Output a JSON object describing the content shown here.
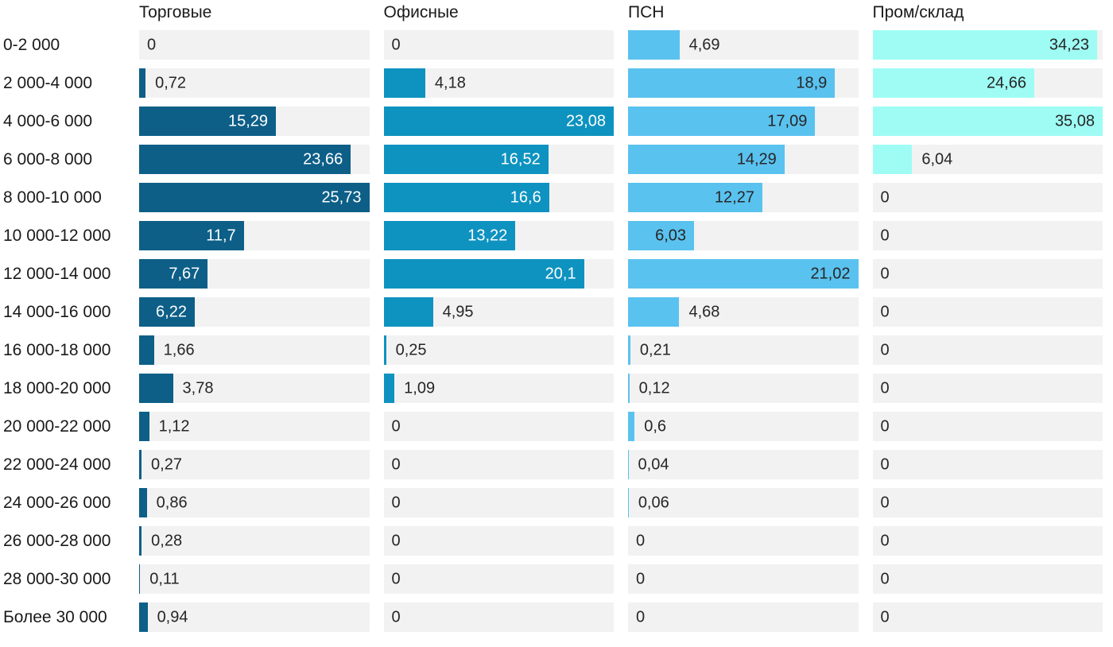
{
  "chart_data": {
    "type": "bar",
    "orientation": "horizontal",
    "layout": "small-multiples-columns",
    "grid": false,
    "axis_ticks": "none (values labeled directly on bars)",
    "value_label_decimal_separator": ",",
    "track_color": "#f2f2f2",
    "text_color": "#1a1a1a",
    "outside_label_color": "#262626",
    "categories": [
      "0-2 000",
      "2 000-4 000",
      "4 000-6 000",
      "6 000-8 000",
      "8 000-10 000",
      "10 000-12 000",
      "12 000-14 000",
      "14 000-16 000",
      "16 000-18 000",
      "18 000-20 000",
      "20 000-22 000",
      "22 000-24 000",
      "24 000-26 000",
      "26 000-28 000",
      "28 000-30 000",
      "Более 30 000"
    ],
    "series": [
      {
        "name": "Торговые",
        "color": "#0d5f87",
        "inside_label_color": "#ffffff",
        "scale_max": 25.73,
        "values": [
          0,
          0.72,
          15.29,
          23.66,
          25.73,
          11.7,
          7.67,
          6.22,
          1.66,
          3.78,
          1.12,
          0.27,
          0.86,
          0.28,
          0.11,
          0.94
        ]
      },
      {
        "name": "Офисные",
        "color": "#0e93c0",
        "inside_label_color": "#ffffff",
        "scale_max": 23.08,
        "values": [
          0,
          4.18,
          23.08,
          16.52,
          16.6,
          13.22,
          20.1,
          4.95,
          0.25,
          1.09,
          0,
          0,
          0,
          0,
          0,
          0
        ]
      },
      {
        "name": "ПСН",
        "color": "#5ac2ef",
        "inside_label_color": "#262626",
        "scale_max": 21.02,
        "values": [
          4.69,
          18.9,
          17.09,
          14.29,
          12.27,
          6.03,
          21.02,
          4.68,
          0.21,
          0.12,
          0.6,
          0.04,
          0.06,
          0,
          0,
          0
        ]
      },
      {
        "name": "Пром/склад",
        "color": "#9efcf4",
        "inside_label_color": "#262626",
        "scale_max": 35.08,
        "values": [
          34.23,
          24.66,
          35.08,
          6.04,
          0,
          0,
          0,
          0,
          0,
          0,
          0,
          0,
          0,
          0,
          0,
          0
        ]
      }
    ]
  }
}
